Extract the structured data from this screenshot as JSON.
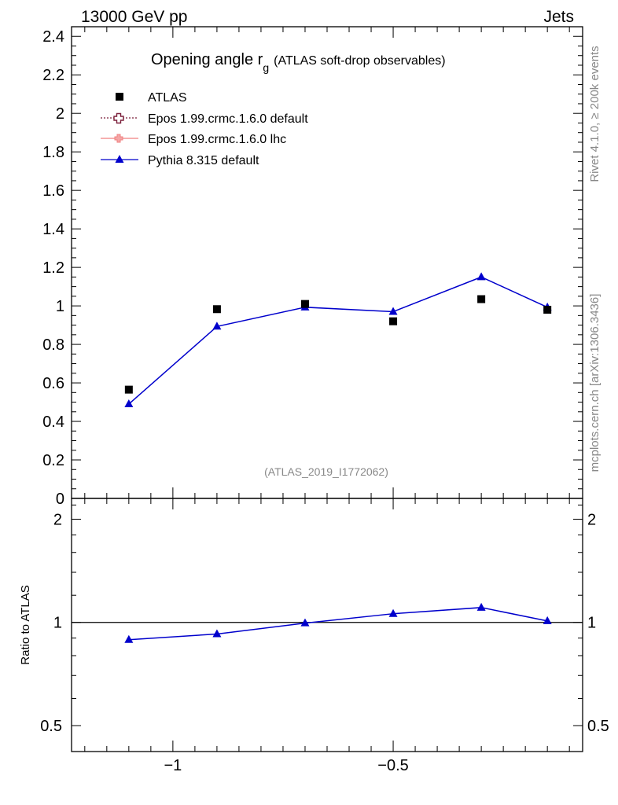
{
  "header": {
    "left": "13000 GeV pp",
    "right": "Jets"
  },
  "side": {
    "top": "Rivet 4.1.0, ≥ 200k events",
    "bottom": "mcplots.cern.ch [arXiv:1306.3436]"
  },
  "colors": {
    "atlas": "#000000",
    "epos_default": "#7b1f3a",
    "epos_lhc": "#f08080",
    "pythia": "#0000cc",
    "gray_text": "#888888"
  },
  "chart_data": [
    {
      "type": "scatter",
      "title": "Opening angle r",
      "title_sub": "g",
      "title_suffix": "(ATLAS soft-drop observables)",
      "watermark": "(ATLAS_2019_I1772062)",
      "xlim": [
        -1.23,
        -0.07
      ],
      "ylim": [
        0,
        2.45
      ],
      "yticks": [
        {
          "v": 0,
          "label": "0"
        },
        {
          "v": 0.2,
          "label": "0.2"
        },
        {
          "v": 0.4,
          "label": "0.4"
        },
        {
          "v": 0.6,
          "label": "0.6"
        },
        {
          "v": 0.8,
          "label": "0.8"
        },
        {
          "v": 1.0,
          "label": "1"
        },
        {
          "v": 1.2,
          "label": "1.2"
        },
        {
          "v": 1.4,
          "label": "1.4"
        },
        {
          "v": 1.6,
          "label": "1.6"
        },
        {
          "v": 1.8,
          "label": "1.8"
        },
        {
          "v": 2.0,
          "label": "2"
        },
        {
          "v": 2.2,
          "label": "2.2"
        },
        {
          "v": 2.4,
          "label": "2.4"
        }
      ],
      "legend": [
        {
          "name": "ATLAS",
          "marker": "square",
          "color": "#000000"
        },
        {
          "name": "Epos 1.99.crmc.1.6.0 default",
          "marker": "open-cross",
          "color": "#7b1f3a"
        },
        {
          "name": "Epos 1.99.crmc.1.6.0 lhc",
          "marker": "cross",
          "color": "#f08080"
        },
        {
          "name": "Pythia 8.315 default",
          "marker": "triangle",
          "color": "#0000cc"
        }
      ],
      "x": [
        -1.1,
        -0.9,
        -0.7,
        -0.5,
        -0.3,
        -0.15
      ],
      "series": [
        {
          "name": "ATLAS",
          "values": [
            0.565,
            0.983,
            1.01,
            0.92,
            1.035,
            0.98
          ]
        },
        {
          "name": "Pythia 8.315 default",
          "values": [
            0.49,
            0.893,
            0.993,
            0.97,
            1.15,
            0.993
          ]
        }
      ]
    },
    {
      "type": "line",
      "ylabel": "Ratio to ATLAS",
      "xlim": [
        -1.23,
        -0.07
      ],
      "ylim": [
        0.42,
        2.3
      ],
      "yscale": "log",
      "yticks": [
        {
          "v": 0.5,
          "label": "0.5"
        },
        {
          "v": 1,
          "label": "1"
        },
        {
          "v": 2,
          "label": "2"
        }
      ],
      "xticks": [
        {
          "v": -1,
          "label": "−1"
        },
        {
          "v": -0.5,
          "label": "−0.5"
        }
      ],
      "x": [
        -1.1,
        -0.9,
        -0.7,
        -0.5,
        -0.3,
        -0.15
      ],
      "series": [
        {
          "name": "Pythia 8.315 default",
          "values": [
            0.89,
            0.925,
            0.995,
            1.06,
            1.105,
            1.01
          ]
        }
      ]
    }
  ]
}
